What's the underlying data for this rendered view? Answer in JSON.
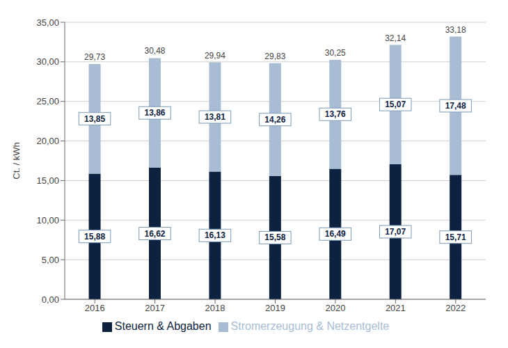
{
  "chart_data": {
    "type": "bar",
    "stacked": true,
    "categories": [
      "2016",
      "2017",
      "2018",
      "2019",
      "2020",
      "2021",
      "2022"
    ],
    "series": [
      {
        "name": "Steuern & Abgaben",
        "color": "#0d2240",
        "values": [
          15.88,
          16.62,
          16.13,
          15.58,
          16.49,
          17.07,
          15.71
        ],
        "value_labels": [
          "15,88",
          "16,62",
          "16,13",
          "15,58",
          "16,49",
          "17,07",
          "15,71"
        ]
      },
      {
        "name": "Stromerzeugung & Netzentgelte",
        "color": "#a8bdd4",
        "values": [
          13.85,
          13.86,
          13.81,
          14.26,
          13.76,
          15.07,
          17.48
        ],
        "value_labels": [
          "13,85",
          "13,86",
          "13,81",
          "14,26",
          "13,76",
          "15,07",
          "17,48"
        ]
      }
    ],
    "totals": [
      29.73,
      30.48,
      29.94,
      29.83,
      30.25,
      32.14,
      33.18
    ],
    "total_labels": [
      "29,73",
      "30,48",
      "29,94",
      "29,83",
      "30,25",
      "32,14",
      "33,18"
    ],
    "y_label": "Ct. / kWh",
    "ylim": [
      0,
      35
    ],
    "yticks": [
      {
        "value": 0,
        "label": "0,00"
      },
      {
        "value": 5,
        "label": "5,00"
      },
      {
        "value": 10,
        "label": "10,00"
      },
      {
        "value": 15,
        "label": "15,00"
      },
      {
        "value": 20,
        "label": "20,00"
      },
      {
        "value": 25,
        "label": "25,00"
      },
      {
        "value": 30,
        "label": "30,00"
      },
      {
        "value": 35,
        "label": "35,00"
      }
    ],
    "grid": true,
    "legend": "bottom",
    "data_labels": true
  }
}
